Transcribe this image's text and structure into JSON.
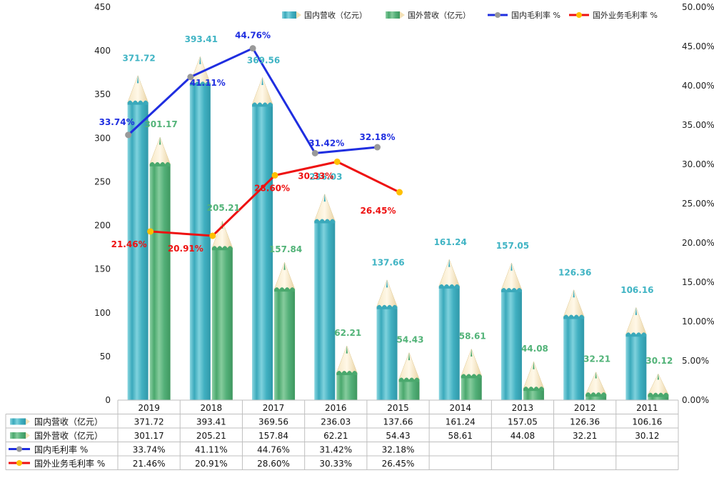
{
  "chart_data": {
    "type": "bar",
    "categories": [
      "2019",
      "2018",
      "2017",
      "2016",
      "2015",
      "2014",
      "2013",
      "2012",
      "2011"
    ],
    "series": [
      {
        "name": "国内营收（亿元）",
        "kind": "bar",
        "axis": "left",
        "color": "#4ab8c8",
        "values": [
          371.72,
          393.41,
          369.56,
          236.03,
          137.66,
          161.24,
          157.05,
          126.36,
          106.16
        ],
        "labels": [
          "371.72",
          "393.41",
          "369.56",
          "236.03",
          "137.66",
          "161.24",
          "157.05",
          "126.36",
          "106.16"
        ]
      },
      {
        "name": "国外营收（亿元）",
        "kind": "bar",
        "axis": "left",
        "color": "#5cb87f",
        "values": [
          301.17,
          205.21,
          157.84,
          62.21,
          54.43,
          58.61,
          44.08,
          32.21,
          30.12
        ],
        "labels": [
          "301.17",
          "205.21",
          "157.84",
          "62.21",
          "54.43",
          "58.61",
          "44.08",
          "32.21",
          "30.12"
        ]
      },
      {
        "name": "国内毛利率 %",
        "kind": "line",
        "axis": "right",
        "color": "#1f2ee0",
        "marker_color": "#999999",
        "values": [
          33.74,
          41.11,
          44.76,
          31.42,
          32.18,
          null,
          null,
          null,
          null
        ],
        "labels": [
          "33.74%",
          "41.11%",
          "44.76%",
          "31.42%",
          "32.18%",
          "",
          "",
          "",
          ""
        ]
      },
      {
        "name": "国外业务毛利率 %",
        "kind": "line",
        "axis": "right",
        "color": "#ee1111",
        "marker_color": "#ffc000",
        "values": [
          21.46,
          20.91,
          28.6,
          30.33,
          26.45,
          null,
          null,
          null,
          null
        ],
        "labels": [
          "21.46%",
          "20.91%",
          "28.60%",
          "30.33%",
          "26.45%",
          "",
          "",
          "",
          ""
        ]
      }
    ],
    "y_left": {
      "min": 0,
      "max": 450,
      "ticks": [
        "0",
        "50",
        "100",
        "150",
        "200",
        "250",
        "300",
        "350",
        "400",
        "450"
      ]
    },
    "y_right": {
      "min": 0,
      "max": 50,
      "ticks": [
        "0.00%",
        "5.00%",
        "10.00%",
        "15.00%",
        "20.00%",
        "25.00%",
        "30.00%",
        "35.00%",
        "40.00%",
        "45.00%",
        "50.00%"
      ]
    },
    "legend_position": "top-right",
    "grid": false,
    "data_table": true
  }
}
